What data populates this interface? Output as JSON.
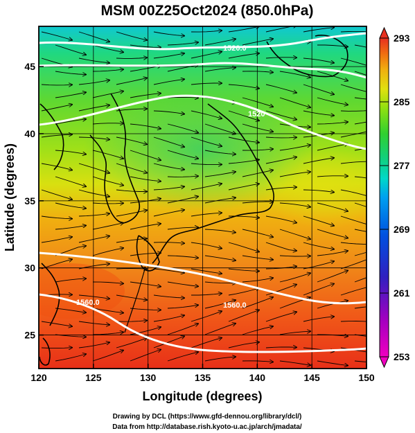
{
  "title": "MSM 00Z25Oct2024 (850.0hPa)",
  "x_axis": {
    "label": "Longitude (degrees)",
    "ticks": [
      "120",
      "125",
      "130",
      "135",
      "140",
      "145",
      "150"
    ]
  },
  "y_axis": {
    "label": "Latitude  (degrees)",
    "ticks": [
      "25",
      "30",
      "35",
      "40",
      "45"
    ]
  },
  "colorbar": {
    "ticks": [
      "293",
      "285",
      "277",
      "269",
      "261",
      "253"
    ],
    "min": 253,
    "max": 293,
    "colors": [
      "#f000c0",
      "#a000c0",
      "#3020c0",
      "#0050e0",
      "#00a0f0",
      "#00d8c8",
      "#10d080",
      "#30d030",
      "#90e010",
      "#e0e010",
      "#f0b010",
      "#f07010",
      "#e83020"
    ]
  },
  "contour_labels": {
    "top": "1520.0",
    "mid_top": "1520",
    "right_bottom": "1560.0",
    "left_bottom": "1560.0"
  },
  "credits": {
    "line1": "Drawing by DCL (https://www.gfd-dennou.org/library/dcl/)",
    "line2": "Data from http://database.rish.kyoto-u.ac.jp/arch/jmadata/"
  }
}
